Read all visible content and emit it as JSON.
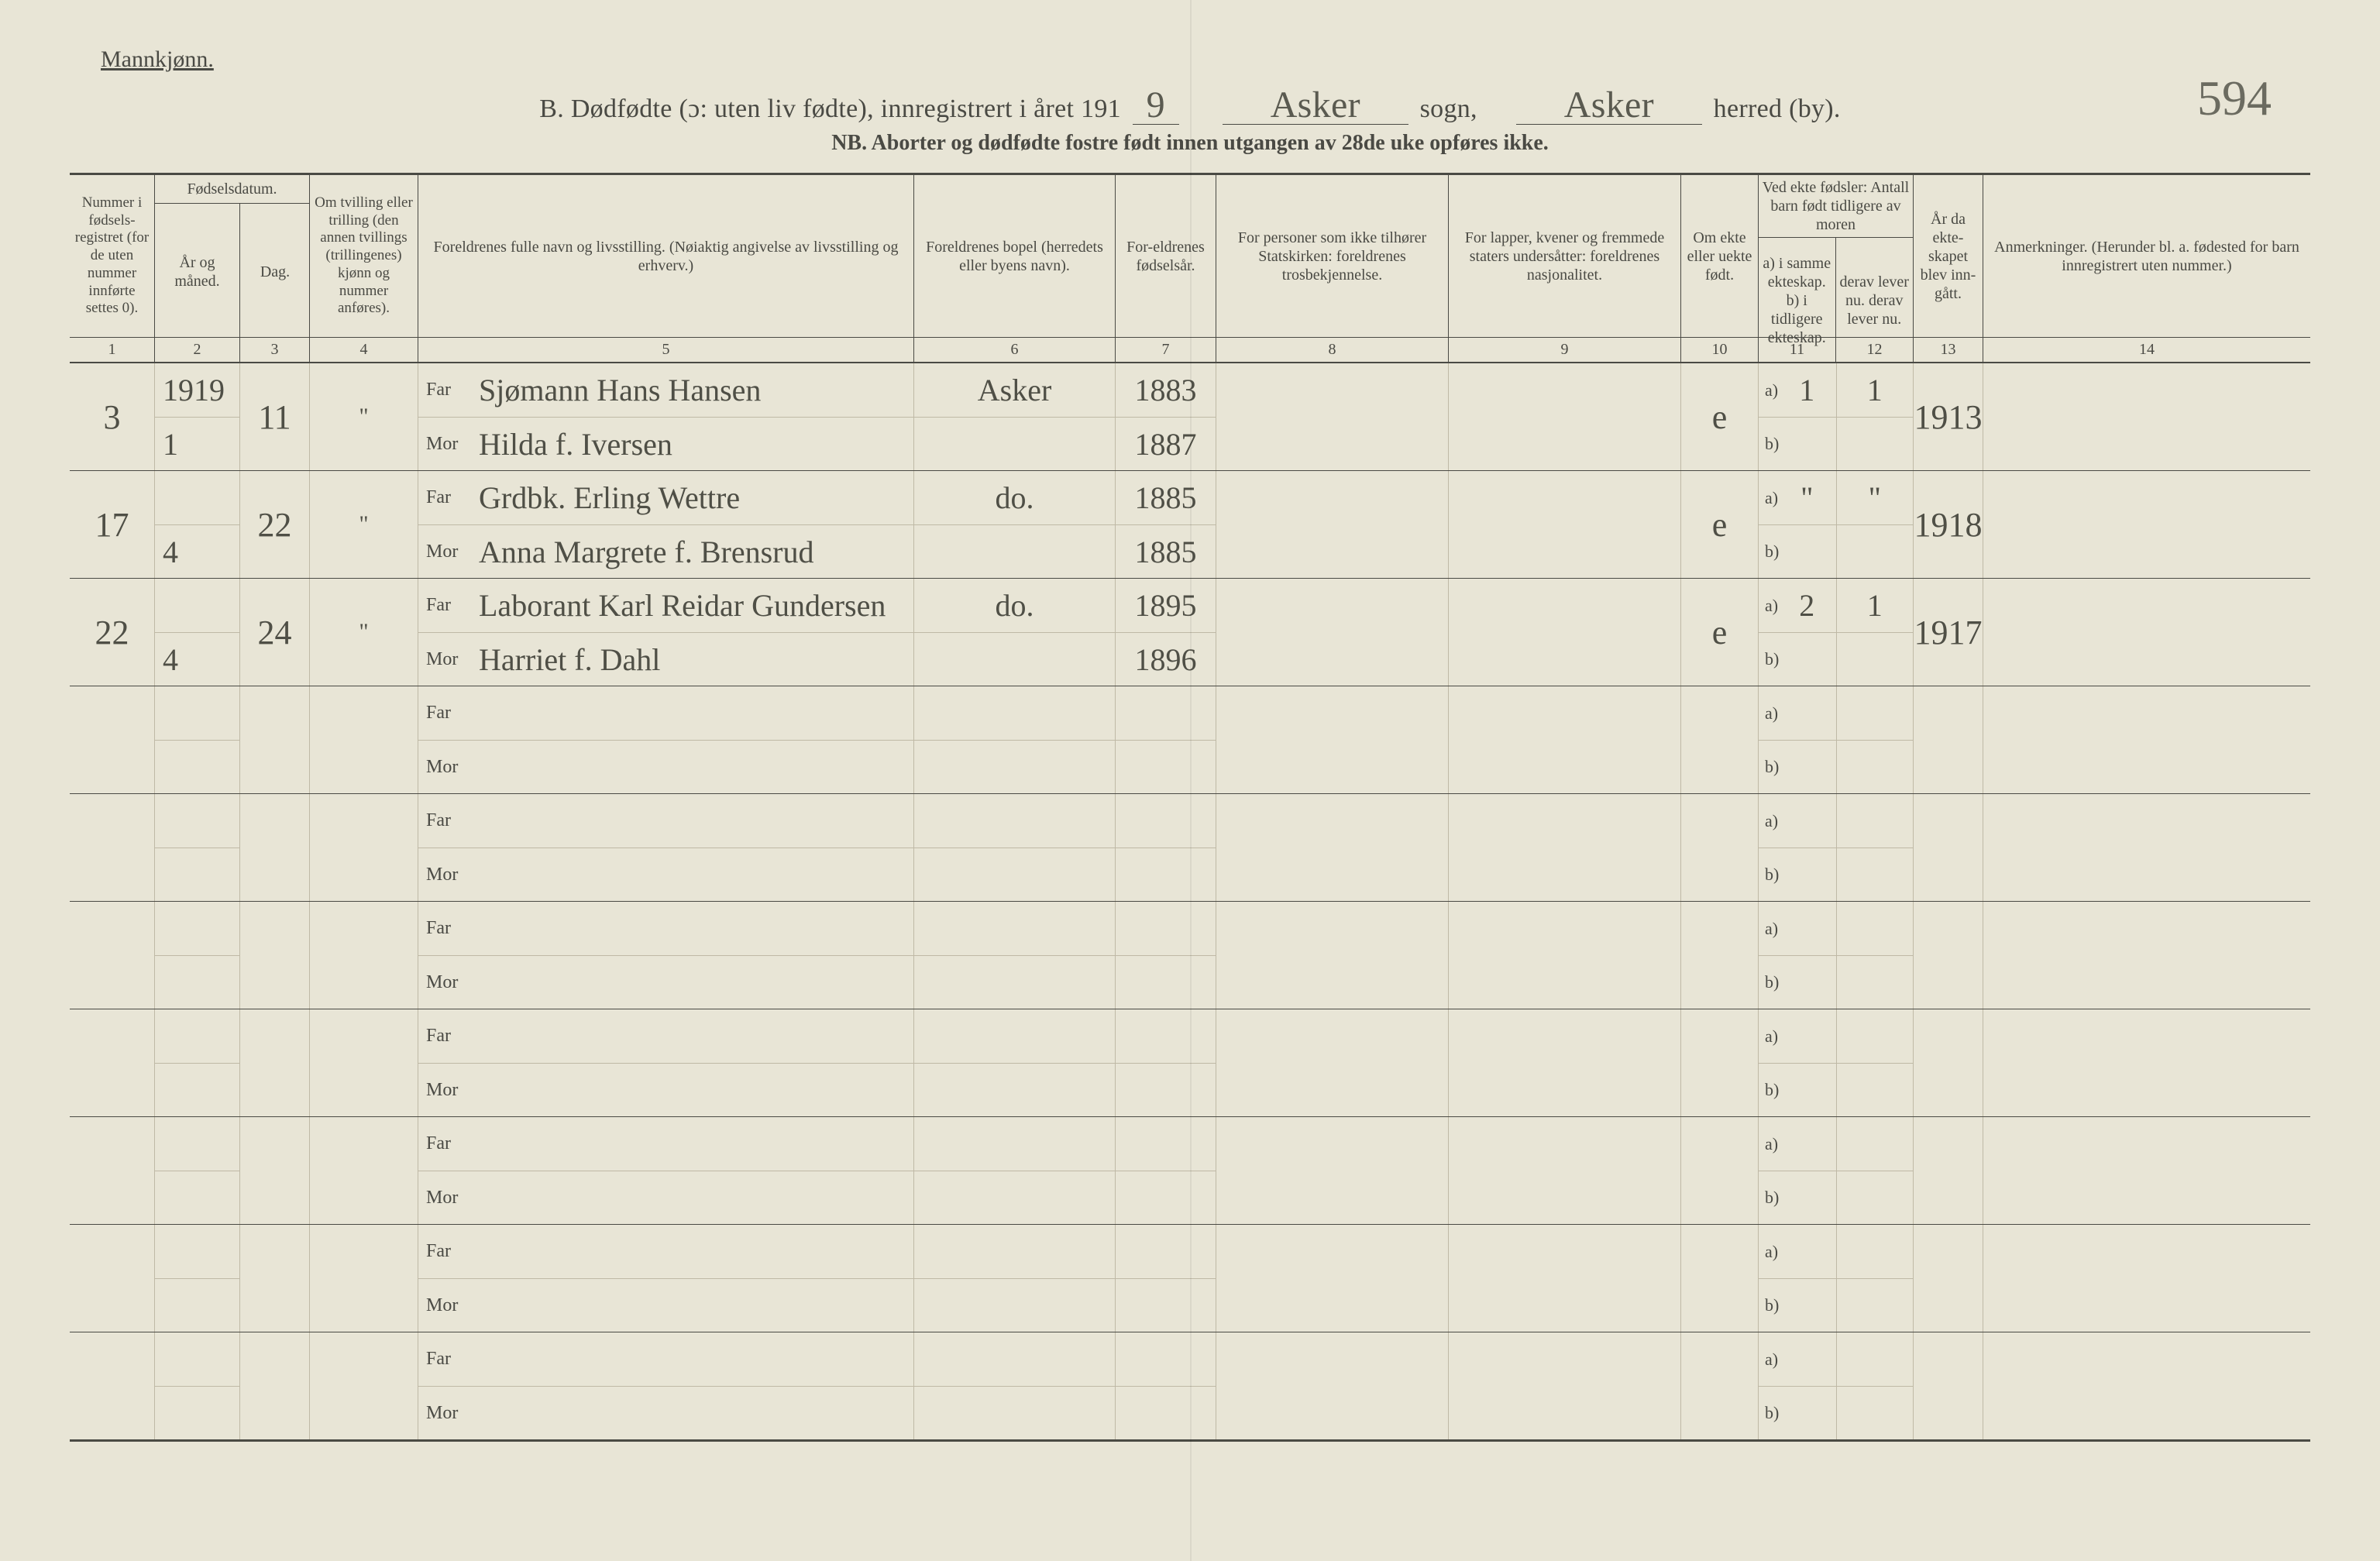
{
  "page": {
    "gender_heading": "Mannkjønn.",
    "title_prefix": "B. Dødfødte (ɔ: uten liv fødte), innregistrert i året 191",
    "year_digit": "9",
    "sogn_label": "sogn,",
    "sogn_value": "Asker",
    "herred_label": "herred (by).",
    "herred_value": "Asker",
    "subtitle": "NB. Aborter og dødfødte fostre født innen utgangen av 28de uke opføres ikke.",
    "page_number": "594"
  },
  "headers": {
    "c1": "Nummer i fødsels-registret (for de uten nummer innførte settes 0).",
    "c2_top": "Fødselsdatum.",
    "c2": "År og måned.",
    "c3": "Dag.",
    "c4": "Om tvilling eller trilling (den annen tvillings (trillingenes) kjønn og nummer anføres).",
    "c5": "Foreldrenes fulle navn og livsstilling. (Nøiaktig angivelse av livsstilling og erhverv.)",
    "c6": "Foreldrenes bopel (herredets eller byens navn).",
    "c7": "For-eldrenes fødselsår.",
    "c8": "For personer som ikke tilhører Statskirken: foreldrenes trosbekjennelse.",
    "c9": "For lapper, kvener og fremmede staters undersåtter: foreldrenes nasjonalitet.",
    "c10": "Om ekte eller uekte født.",
    "c11_12_top": "Ved ekte fødsler: Antall barn født tidligere av moren",
    "c11": "a) i samme ekteskap.  b) i tidligere ekteskap.",
    "c12": "derav lever nu.  derav lever nu.",
    "c13": "År da ekte-skapet blev inn-gått.",
    "c14": "Anmerkninger. (Herunder bl. a. fødested for barn innregistrert uten nummer.)",
    "nums": [
      "1",
      "2",
      "3",
      "4",
      "5",
      "6",
      "7",
      "8",
      "9",
      "10",
      "11",
      "12",
      "13",
      "14"
    ],
    "far": "Far",
    "mor": "Mor",
    "a": "a)",
    "b": "b)"
  },
  "rows": [
    {
      "num": "3",
      "year_month_top": "1919",
      "year_month_bot": "1",
      "day": "11",
      "twin": "\"",
      "far": "Sjømann Hans Hansen",
      "mor": "Hilda f. Iversen",
      "bopel": "Asker",
      "byear_far": "1883",
      "byear_mor": "1887",
      "c8": "",
      "c9": "",
      "ekte": "e",
      "a_same": "1",
      "a_lever": "1",
      "b_same": "",
      "b_lever": "",
      "marriage_year": "1913",
      "anm": ""
    },
    {
      "num": "17",
      "year_month_top": "",
      "year_month_bot": "4",
      "day": "22",
      "twin": "\"",
      "far": "Grdbk. Erling Wettre",
      "mor": "Anna Margrete f. Brensrud",
      "bopel": "do.",
      "byear_far": "1885",
      "byear_mor": "1885",
      "c8": "",
      "c9": "",
      "ekte": "e",
      "a_same": "\"",
      "a_lever": "\"",
      "b_same": "",
      "b_lever": "",
      "marriage_year": "1918",
      "anm": ""
    },
    {
      "num": "22",
      "year_month_top": "",
      "year_month_bot": "4",
      "day": "24",
      "twin": "\"",
      "far": "Laborant Karl Reidar Gundersen",
      "mor": "Harriet f. Dahl",
      "bopel": "do.",
      "byear_far": "1895",
      "byear_mor": "1896",
      "c8": "",
      "c9": "",
      "ekte": "e",
      "a_same": "2",
      "a_lever": "1",
      "b_same": "",
      "b_lever": "",
      "marriage_year": "1917",
      "anm": ""
    }
  ],
  "empty_row_count": 7,
  "style": {
    "paper_bg": "#e8e5d6",
    "ink": "#4a4a44",
    "handwriting": "#4f4f46",
    "rule_light": "#bfb9a6",
    "header_font_size_pt": 15,
    "handwriting_font_size_pt": 30,
    "title_font_size_pt": 25
  }
}
